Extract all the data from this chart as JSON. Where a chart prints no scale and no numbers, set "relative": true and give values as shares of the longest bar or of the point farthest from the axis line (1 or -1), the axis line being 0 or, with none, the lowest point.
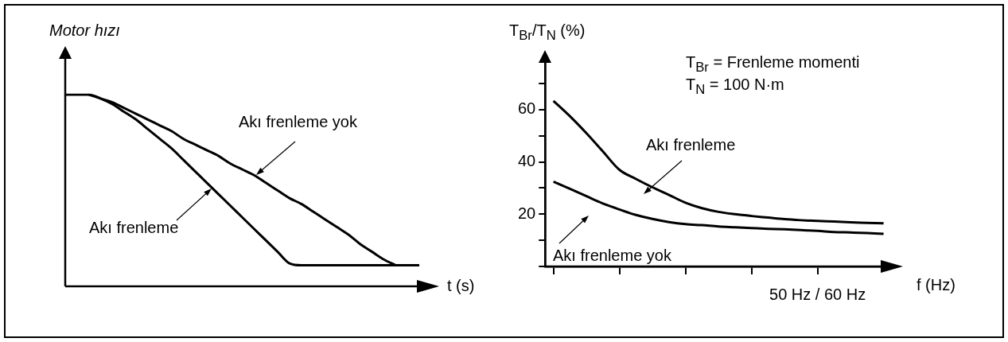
{
  "chart_data": [
    {
      "type": "line",
      "relative": true,
      "ylabel": "Motor hızı",
      "xlabel": "t (s)",
      "categories": [
        null,
        null,
        null,
        null,
        null,
        null,
        null,
        null,
        null,
        null,
        null,
        null,
        null,
        null,
        null,
        null,
        null,
        null,
        null,
        null,
        null,
        null,
        null,
        null,
        null,
        null,
        null,
        null,
        null,
        null,
        null
      ],
      "series": [
        {
          "name": "Akı frenleme yok",
          "color": "#000000",
          "values": [
            null,
            null,
            1,
            0.98,
            0.96,
            0.93,
            0.9,
            0.87,
            0.84,
            0.81,
            0.77,
            0.74,
            0.71,
            0.68,
            0.64,
            0.61,
            0.58,
            0.54,
            0.5,
            0.46,
            0.43,
            0.39,
            0.35,
            0.31,
            0.27,
            0.22,
            0.18,
            0.14,
            0.11,
            null,
            null
          ]
        },
        {
          "name": "Akı frenleme",
          "color": "#000000",
          "values": [
            1,
            1,
            1,
            0.98,
            0.95,
            0.91,
            0.87,
            0.82,
            0.77,
            0.72,
            0.66,
            0.6,
            0.54,
            0.48,
            0.42,
            0.36,
            0.3,
            0.24,
            0.18,
            0.12,
            0.11,
            0.11,
            0.11,
            0.11,
            0.11,
            0.11,
            0.11,
            0.11,
            0.11,
            0.11,
            0.11
          ]
        }
      ]
    },
    {
      "type": "line",
      "ylabel": "T$_{Br}$/T$_{N}$ (%)",
      "xlabel": "f (Hz)",
      "annotations": [
        "T$_{Br}$ = Frenleme momenti",
        "T$_{N}$ = 100 N·m"
      ],
      "categories": [
        null,
        null,
        null,
        null,
        null,
        null,
        null,
        null,
        null,
        null,
        null,
        null,
        null,
        null,
        null,
        null,
        "50 Hz / 60 Hz",
        null,
        null,
        null,
        null
      ],
      "ylim": [
        0,
        81
      ],
      "yticks": [
        {
          "value": 0,
          "label": null
        },
        {
          "value": 10,
          "label": null
        },
        20,
        {
          "value": 30,
          "label": null
        },
        40,
        {
          "value": 50,
          "label": null
        },
        60,
        {
          "value": 70,
          "label": null
        }
      ],
      "series": [
        {
          "name": "Akı frenleme",
          "color": "#000000",
          "values": [
            63.4,
            57.5,
            51,
            44,
            37,
            33.5,
            30.3,
            27.4,
            24.4,
            22.3,
            20.9,
            20,
            19.3,
            18.7,
            18.1,
            17.7,
            17.4,
            17.2,
            16.9,
            16.7,
            16.5
          ]
        },
        {
          "name": "Akı frenleme yok",
          "color": "#000000",
          "values": [
            32.5,
            29.7,
            26.9,
            24.1,
            21.8,
            19.7,
            18.2,
            17,
            16.2,
            15.8,
            15.3,
            15,
            14.7,
            14.4,
            14.2,
            13.9,
            13.6,
            13.2,
            13,
            12.8,
            12.5
          ]
        }
      ]
    }
  ]
}
